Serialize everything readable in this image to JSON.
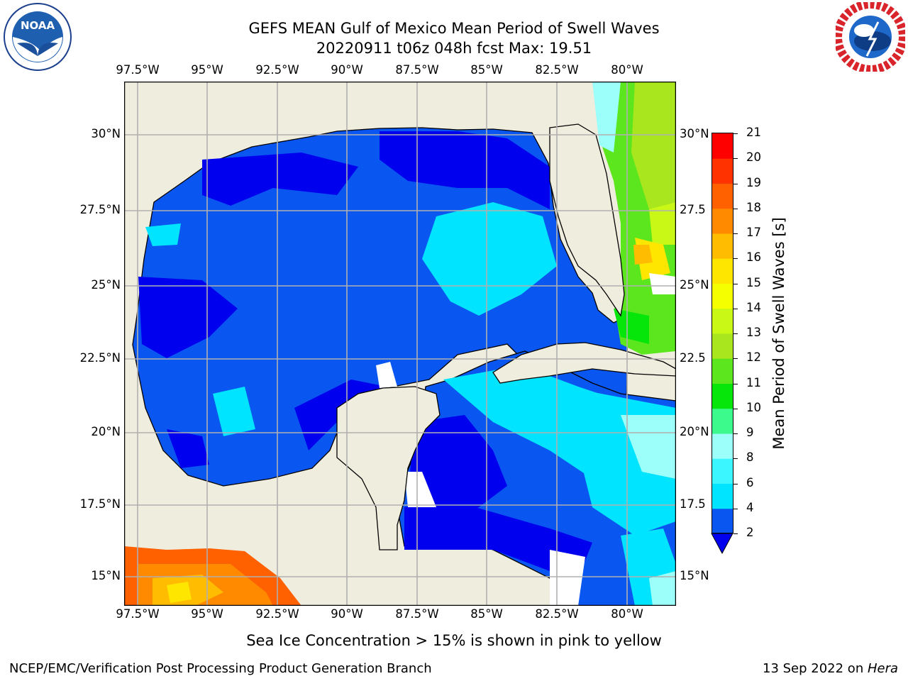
{
  "header": {
    "title": "GEFS MEAN Gulf of Mexico Mean Period of Swell Waves",
    "subtitle": "20220911 t06z 048h fcst   Max: 19.51"
  },
  "logos": {
    "left": {
      "name": "noaa-logo",
      "text": "NOAA"
    },
    "right": {
      "name": "nws-logo",
      "text": "NATIONAL WEATHER SERVICE"
    }
  },
  "map": {
    "lon_labels": [
      "97.5°W",
      "95°W",
      "92.5°W",
      "90°W",
      "87.5°W",
      "85°W",
      "82.5°W",
      "80°W"
    ],
    "lat_labels": [
      "30°N",
      "27.5°N",
      "25°N",
      "22.5°N",
      "20°N",
      "17.5°N",
      "15°N"
    ],
    "right_lat_labels": [
      "30°N",
      "27.5",
      "25°N",
      "22.5",
      "20°N",
      "17.5",
      "15°N"
    ],
    "colors": {
      "land": "#efedde",
      "coast": "#000000",
      "grid": "#b0b0b0"
    }
  },
  "colorbar": {
    "label": "Mean Period of Swell Waves [s]",
    "ticks": [
      "2",
      "4",
      "6",
      "8",
      "9",
      "10",
      "11",
      "12",
      "13",
      "14",
      "15",
      "16",
      "17",
      "18",
      "19",
      "20",
      "21"
    ],
    "colors": [
      "#0a56f0",
      "#00e4ff",
      "#3cf6ff",
      "#9cfffa",
      "#3cfa8c",
      "#06e60a",
      "#5ce61e",
      "#a9e61e",
      "#c9f716",
      "#f5ff00",
      "#ffe600",
      "#ffbc00",
      "#ff8a00",
      "#ff6000",
      "#ff3200",
      "#ff0000"
    ],
    "extend_color": "#0000ee"
  },
  "notes": {
    "sea_ice": "Sea Ice Concentration > 15% is shown in pink to yellow"
  },
  "footer": {
    "left": "NCEP/EMC/Verification Post Processing Product Generation Branch",
    "right_prefix": "13 Sep 2022 on ",
    "right_machine": "Hera"
  }
}
